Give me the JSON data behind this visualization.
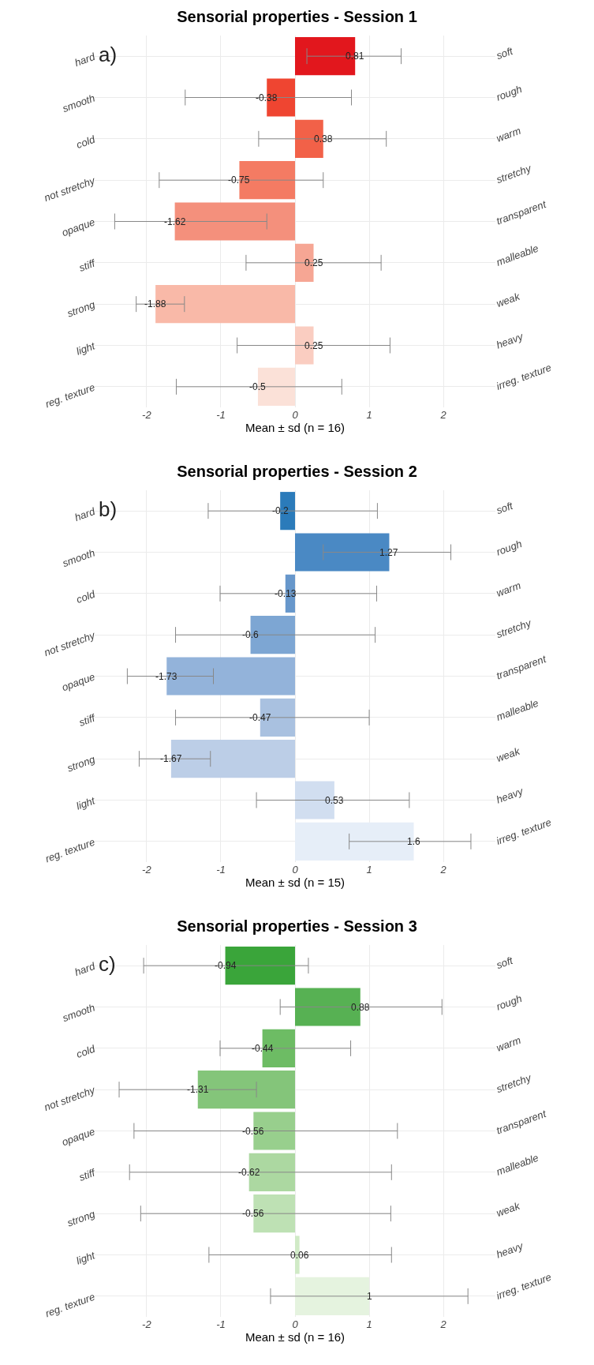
{
  "chart_data": [
    {
      "type": "bar",
      "orientation": "horizontal",
      "title": "Sensorial properties - Session 1",
      "xlabel": "Mean ± sd (n = 16)",
      "annotations": [
        "a)"
      ],
      "categories": [
        "hard",
        "smooth",
        "cold",
        "not stretchy",
        "opaque",
        "stiff",
        "strong",
        "light",
        "reg. texture"
      ],
      "y2_categories": [
        "soft",
        "rough",
        "warm",
        "stretchy",
        "transparent",
        "malleable",
        "weak",
        "heavy",
        "irreg. texture"
      ],
      "values": [
        0.81,
        -0.38,
        0.38,
        -0.75,
        -1.62,
        0.25,
        -1.88,
        0.25,
        -0.5
      ],
      "errors": [
        [
          0.16,
          1.43
        ],
        [
          -1.48,
          0.76
        ],
        [
          -0.49,
          1.23
        ],
        [
          -1.83,
          0.38
        ],
        [
          -2.43,
          -0.38
        ],
        [
          -0.66,
          1.16
        ],
        [
          -2.14,
          -1.49
        ],
        [
          -0.78,
          1.28
        ],
        [
          -1.6,
          0.63
        ]
      ],
      "colors": [
        "#e2171d",
        "#ef4531",
        "#f26148",
        "#f47b63",
        "#f4907c",
        "#f6a694",
        "#f9b9a8",
        "#facdc1",
        "#fbe1d8"
      ],
      "xlim": [
        -2.7,
        2.7
      ],
      "xticks": [
        -2,
        -1,
        0,
        1,
        2
      ],
      "grid": true,
      "data_labels": true
    },
    {
      "type": "bar",
      "orientation": "horizontal",
      "title": "Sensorial properties - Session 2",
      "xlabel": "Mean ± sd (n = 15)",
      "annotations": [
        "b)"
      ],
      "categories": [
        "hard",
        "smooth",
        "cold",
        "not stretchy",
        "opaque",
        "stiff",
        "strong",
        "light",
        "reg. texture"
      ],
      "y2_categories": [
        "soft",
        "rough",
        "warm",
        "stretchy",
        "transparent",
        "malleable",
        "weak",
        "heavy",
        "irreg. texture"
      ],
      "values": [
        -0.2,
        1.27,
        -0.13,
        -0.6,
        -1.73,
        -0.47,
        -1.67,
        0.53,
        1.6
      ],
      "errors": [
        [
          -1.17,
          1.11
        ],
        [
          0.38,
          2.1
        ],
        [
          -1.01,
          1.1
        ],
        [
          -1.61,
          1.08
        ],
        [
          -2.26,
          -1.1
        ],
        [
          -1.61,
          1.0
        ],
        [
          -2.1,
          -1.14
        ],
        [
          -0.52,
          1.54
        ],
        [
          0.73,
          2.37
        ]
      ],
      "colors": [
        "#2b7bba",
        "#4a89c4",
        "#6797cb",
        "#7da6d3",
        "#93b3da",
        "#a9c1e0",
        "#bccee7",
        "#d1def0",
        "#e6eef8"
      ],
      "xlim": [
        -2.7,
        2.7
      ],
      "xticks": [
        -2,
        -1,
        0,
        1,
        2
      ],
      "grid": true,
      "data_labels": true
    },
    {
      "type": "bar",
      "orientation": "horizontal",
      "title": "Sensorial properties - Session 3",
      "xlabel": "Mean ± sd (n = 16)",
      "annotations": [
        "c)"
      ],
      "categories": [
        "hard",
        "smooth",
        "cold",
        "not stretchy",
        "opaque",
        "stiff",
        "strong",
        "light",
        "reg. texture"
      ],
      "y2_categories": [
        "soft",
        "rough",
        "warm",
        "stretchy",
        "transparent",
        "malleable",
        "weak",
        "heavy",
        "irreg. texture"
      ],
      "values": [
        -0.94,
        0.88,
        -0.44,
        -1.31,
        -0.56,
        -0.62,
        -0.56,
        0.06,
        1
      ],
      "errors": [
        [
          -2.04,
          0.18
        ],
        [
          -0.2,
          1.98
        ],
        [
          -1.01,
          0.75
        ],
        [
          -2.37,
          -0.52
        ],
        [
          -2.17,
          1.38
        ],
        [
          -2.23,
          1.3
        ],
        [
          -2.08,
          1.29
        ],
        [
          -1.16,
          1.3
        ],
        [
          -0.33,
          2.33
        ]
      ],
      "colors": [
        "#3aa53a",
        "#57b153",
        "#6dbc64",
        "#84c57a",
        "#98cf8d",
        "#acd8a1",
        "#bee1b4",
        "#d0eac6",
        "#e5f3df"
      ],
      "xlim": [
        -2.7,
        2.7
      ],
      "xticks": [
        -2,
        -1,
        0,
        1,
        2
      ],
      "grid": true,
      "data_labels": true
    }
  ]
}
